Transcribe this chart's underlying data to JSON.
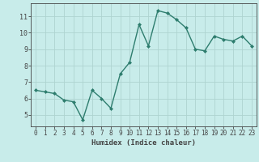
{
  "x": [
    0,
    1,
    2,
    3,
    4,
    5,
    6,
    7,
    8,
    9,
    10,
    11,
    12,
    13,
    14,
    15,
    16,
    17,
    18,
    19,
    20,
    21,
    22,
    23
  ],
  "y": [
    6.5,
    6.4,
    6.3,
    5.9,
    5.8,
    4.7,
    6.5,
    6.0,
    5.4,
    7.5,
    8.2,
    10.5,
    9.2,
    11.35,
    11.2,
    10.8,
    10.3,
    9.0,
    8.9,
    9.8,
    9.6,
    9.5,
    9.8,
    9.2
  ],
  "xlabel": "Humidex (Indice chaleur)",
  "line_color": "#2e7d6e",
  "marker": "D",
  "marker_size": 2.0,
  "bg_color": "#c8ecea",
  "grid_color": "#aed4d0",
  "axis_color": "#444444",
  "ylim": [
    4.3,
    11.8
  ],
  "xlim": [
    -0.5,
    23.5
  ],
  "yticks": [
    5,
    6,
    7,
    8,
    9,
    10,
    11
  ],
  "xticks": [
    0,
    1,
    2,
    3,
    4,
    5,
    6,
    7,
    8,
    9,
    10,
    11,
    12,
    13,
    14,
    15,
    16,
    17,
    18,
    19,
    20,
    21,
    22,
    23
  ],
  "tick_fontsize": 5.5,
  "xlabel_fontsize": 6.5,
  "linewidth": 1.0
}
